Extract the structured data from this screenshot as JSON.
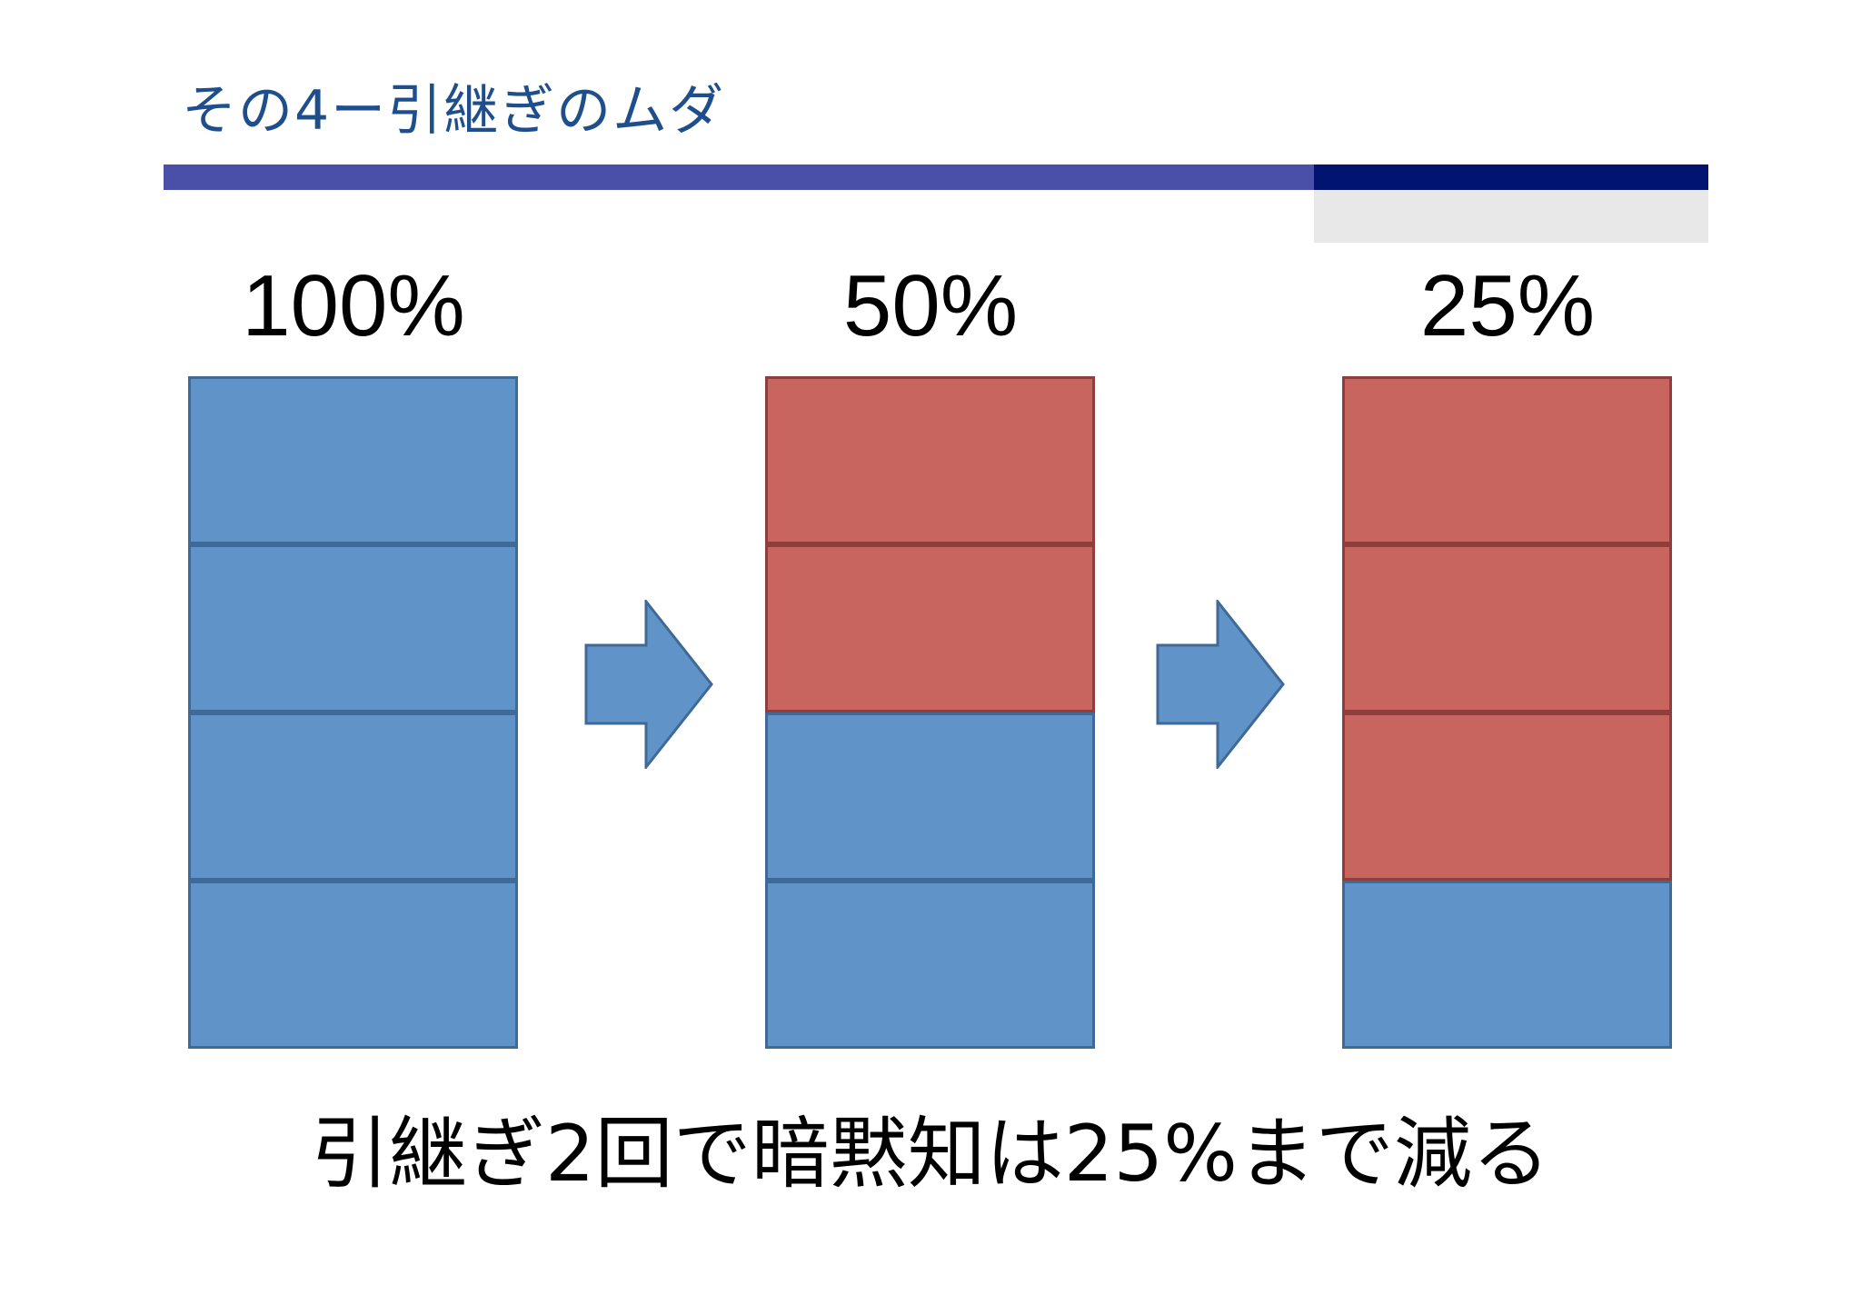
{
  "title": "その4ー引継ぎのムダ",
  "colors": {
    "title": "#1f4e8c",
    "rule_main": "#4a4fa8",
    "rule_dark": "#001470",
    "rule_grey": "#e8e8e8",
    "retained_blue": "#6094c8",
    "lost_red": "#c9655f"
  },
  "stages": [
    {
      "label": "100%",
      "retained_fraction": 1.0,
      "blocks": [
        "blue",
        "blue",
        "blue",
        "blue"
      ]
    },
    {
      "label": "50%",
      "retained_fraction": 0.5,
      "blocks": [
        "red",
        "red",
        "blue",
        "blue"
      ]
    },
    {
      "label": "25%",
      "retained_fraction": 0.25,
      "blocks": [
        "red",
        "red",
        "red",
        "blue"
      ]
    }
  ],
  "arrows": [
    "right-arrow-icon",
    "right-arrow-icon"
  ],
  "caption": "引継ぎ2回で暗黙知は25%まで減る"
}
